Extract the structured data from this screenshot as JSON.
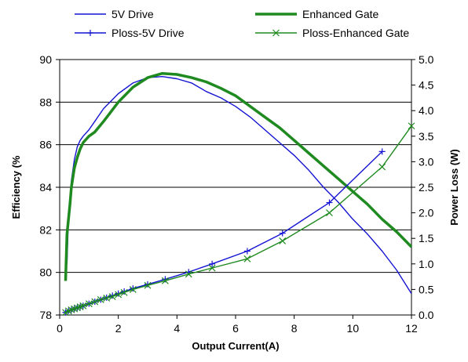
{
  "chart_data": {
    "type": "line",
    "xlabel": "Output Current(A)",
    "ylabel": "Efficiency (%",
    "y2label": "Power Loss (W)",
    "xlim": [
      0,
      12
    ],
    "ylim": [
      78,
      90
    ],
    "y2lim": [
      0,
      5
    ],
    "xticks": [
      "0",
      "2",
      "4",
      "6",
      "8",
      "10",
      "12"
    ],
    "yticks": [
      "78",
      "80",
      "82",
      "84",
      "86",
      "88",
      "90"
    ],
    "y2ticks": [
      "0.0",
      "0.5",
      "1.0",
      "1.5",
      "2.0",
      "2.5",
      "3.0",
      "3.5",
      "4.0",
      "4.5",
      "5.0"
    ],
    "grid": true,
    "legend_position": "top",
    "colors": {
      "blue": "#1414d2",
      "green": "#1f8a1f"
    },
    "series": [
      {
        "name": "5V Drive",
        "axis": "left",
        "color": "#1414d2",
        "marker": "none",
        "x": [
          0.25,
          0.3,
          0.35,
          0.4,
          0.5,
          0.6,
          0.7,
          0.8,
          1.0,
          1.2,
          1.5,
          2.0,
          2.5,
          3.0,
          3.5,
          4.0,
          4.5,
          5.0,
          5.5,
          6.0,
          6.5,
          7.0,
          7.5,
          8.0,
          8.5,
          9.0,
          9.5,
          10.0,
          10.5,
          11.0,
          11.5,
          12.0
        ],
        "y": [
          80.4,
          82.6,
          83.5,
          84.3,
          85.3,
          85.9,
          86.2,
          86.4,
          86.7,
          87.1,
          87.7,
          88.4,
          88.9,
          89.15,
          89.2,
          89.1,
          88.9,
          88.5,
          88.2,
          87.8,
          87.3,
          86.7,
          86.1,
          85.5,
          84.8,
          84.0,
          83.3,
          82.5,
          81.8,
          81.0,
          80.1,
          79.0
        ]
      },
      {
        "name": "Enhanced Gate",
        "axis": "left",
        "color": "#1f8a1f",
        "marker": "none",
        "x": [
          0.2,
          0.25,
          0.3,
          0.35,
          0.4,
          0.5,
          0.6,
          0.7,
          0.8,
          1.0,
          1.2,
          1.5,
          2.0,
          2.5,
          3.0,
          3.5,
          4.0,
          4.5,
          5.0,
          5.5,
          6.0,
          6.5,
          7.0,
          7.5,
          8.0,
          8.5,
          9.0,
          9.5,
          10.0,
          10.5,
          11.0,
          11.5,
          12.0
        ],
        "y": [
          79.6,
          81.8,
          82.5,
          83.2,
          84.0,
          84.9,
          85.4,
          85.8,
          86.1,
          86.4,
          86.6,
          87.1,
          88.0,
          88.7,
          89.15,
          89.35,
          89.3,
          89.15,
          88.95,
          88.65,
          88.3,
          87.8,
          87.3,
          86.8,
          86.2,
          85.6,
          85.0,
          84.4,
          83.8,
          83.2,
          82.5,
          81.9,
          81.2
        ]
      },
      {
        "name": "Ploss-5V Drive",
        "axis": "right",
        "color": "#1414d2",
        "marker": "+",
        "x": [
          0.2,
          0.3,
          0.4,
          0.5,
          0.6,
          0.7,
          0.8,
          1.0,
          1.2,
          1.4,
          1.6,
          1.8,
          2.0,
          2.2,
          2.5,
          3.0,
          3.6,
          4.4,
          5.2,
          6.4,
          7.6,
          9.2,
          11.0
        ],
        "y": [
          0.05,
          0.08,
          0.1,
          0.12,
          0.14,
          0.16,
          0.18,
          0.22,
          0.26,
          0.3,
          0.34,
          0.38,
          0.42,
          0.46,
          0.52,
          0.6,
          0.7,
          0.84,
          1.0,
          1.25,
          1.6,
          2.2,
          3.2
        ]
      },
      {
        "name": "Ploss-Enhanced Gate",
        "axis": "right",
        "color": "#1f8a1f",
        "marker": "x",
        "x": [
          0.2,
          0.3,
          0.4,
          0.5,
          0.6,
          0.7,
          0.8,
          1.0,
          1.2,
          1.4,
          1.6,
          1.8,
          2.0,
          2.2,
          2.5,
          3.0,
          3.6,
          4.4,
          5.2,
          6.4,
          7.6,
          9.2,
          11.0,
          12.0
        ],
        "y": [
          0.05,
          0.08,
          0.1,
          0.12,
          0.14,
          0.16,
          0.18,
          0.22,
          0.26,
          0.3,
          0.33,
          0.36,
          0.4,
          0.44,
          0.5,
          0.58,
          0.67,
          0.8,
          0.92,
          1.1,
          1.45,
          2.0,
          2.9,
          3.7
        ]
      }
    ]
  }
}
